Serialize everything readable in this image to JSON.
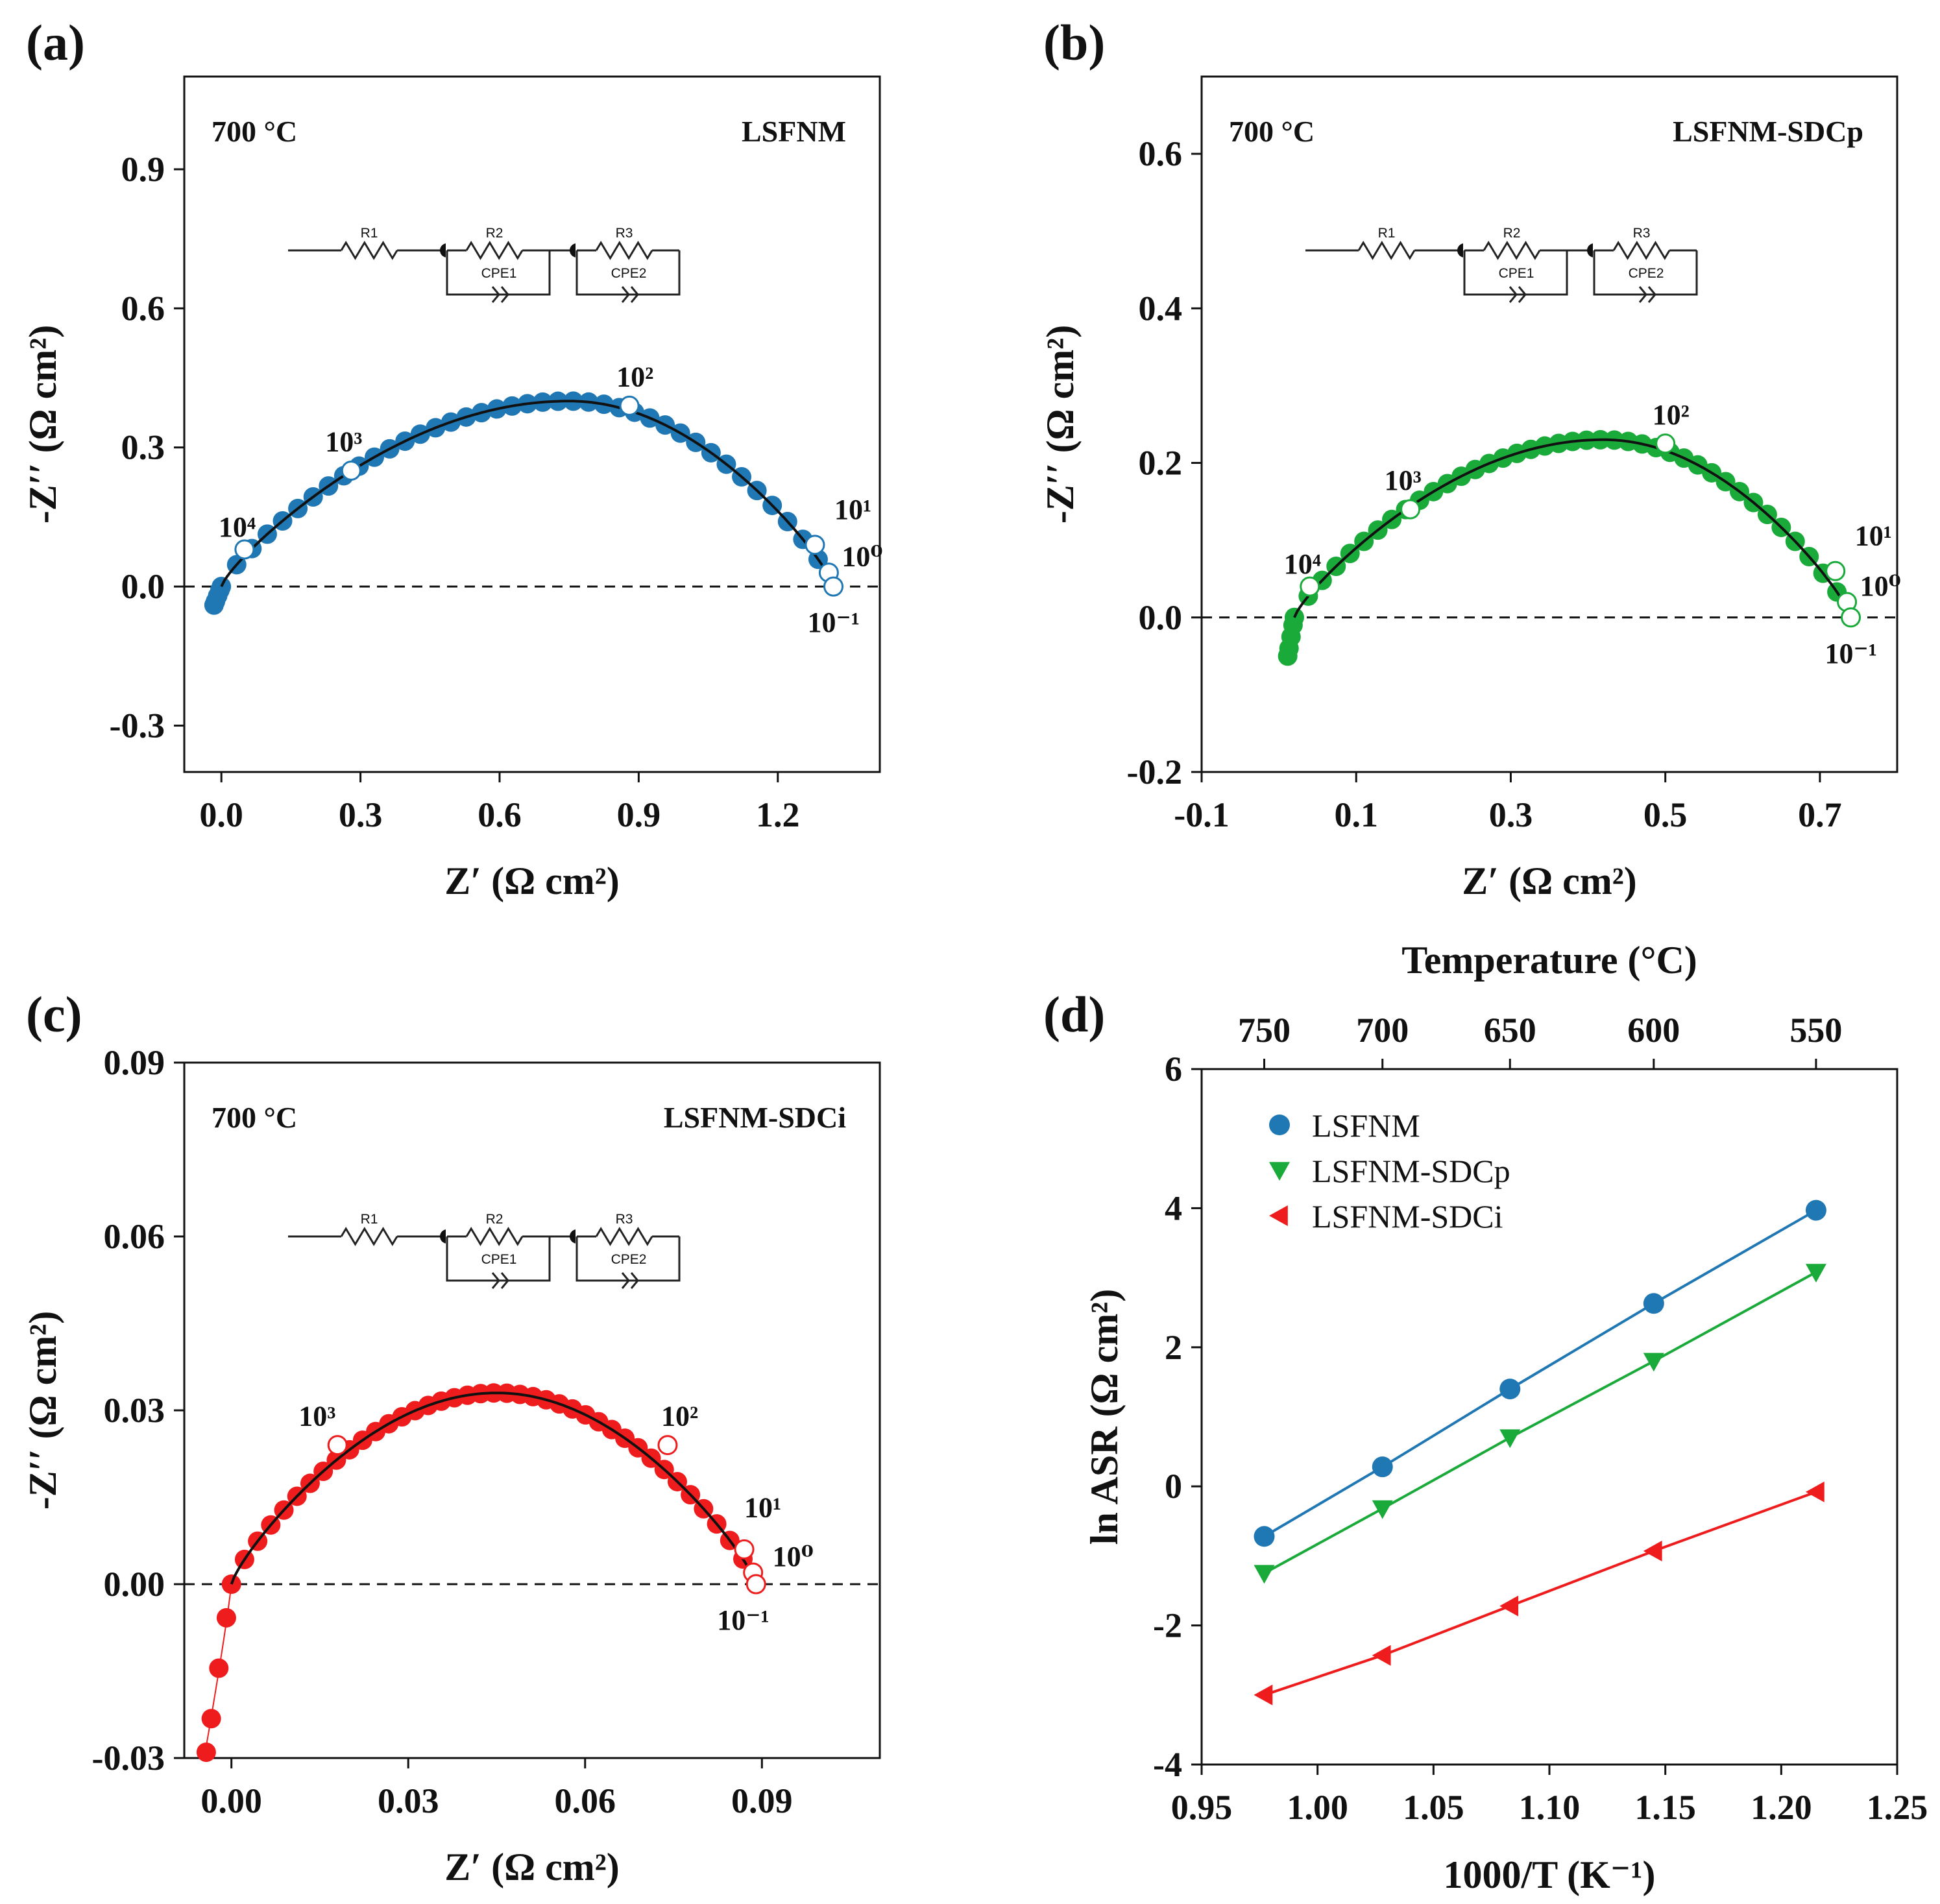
{
  "figure": {
    "panels": [
      {
        "label": "(a)",
        "temp_label": "700 °C",
        "sample": "LSFNM",
        "circuit": [
          "R1",
          "R2",
          "CPE1",
          "R3",
          "CPE2"
        ],
        "xlabel": "Z′ (Ω cm²)",
        "ylabel": "-Z′′ (Ω cm²)",
        "freq_labels": [
          "10⁴",
          "10³",
          "10²",
          "10¹",
          "10⁰",
          "10⁻¹"
        ]
      },
      {
        "label": "(b)",
        "temp_label": "700 °C",
        "sample": "LSFNM-SDCp",
        "circuit": [
          "R1",
          "R2",
          "CPE1",
          "R3",
          "CPE2"
        ],
        "xlabel": "Z′ (Ω cm²)",
        "ylabel": "-Z′′ (Ω cm²)",
        "freq_labels": [
          "10⁴",
          "10³",
          "10²",
          "10¹",
          "10⁰",
          "10⁻¹"
        ]
      },
      {
        "label": "(c)",
        "temp_label": "700 °C",
        "sample": "LSFNM-SDCi",
        "circuit": [
          "R1",
          "R2",
          "CPE1",
          "R3",
          "CPE2"
        ],
        "xlabel": "Z′ (Ω cm²)",
        "ylabel": "-Z′′ (Ω cm²)",
        "freq_labels": [
          "10³",
          "10²",
          "10¹",
          "10⁰",
          "10⁻¹"
        ]
      },
      {
        "label": "(d)",
        "xlabel": "1000/T (K⁻¹)",
        "ylabel": "ln ASR (Ω cm²)",
        "top_label": "Temperature (°C)"
      }
    ]
  },
  "chart_data": [
    {
      "type": "scatter",
      "panel": "(a)",
      "title": "700 °C LSFNM",
      "xlabel": "Z′ (Ω cm²)",
      "ylabel": "-Z′′ (Ω cm²)",
      "xlim": [
        -0.08,
        1.42
      ],
      "ylim": [
        -0.4,
        1.1
      ],
      "xticks": [
        0.0,
        0.3,
        0.6,
        0.9,
        1.2
      ],
      "yticks": [
        -0.3,
        0.0,
        0.3,
        0.6,
        0.9
      ],
      "xtick_labels": [
        "0.0",
        "0.3",
        "0.6",
        "0.9",
        "1.2"
      ],
      "ytick_labels": [
        "-0.3",
        "0.0",
        "0.3",
        "0.6",
        "0.9"
      ],
      "arc": {
        "r0": 0.0,
        "r_end": 1.32,
        "peak": 0.4,
        "peak_x": 0.75,
        "tail_min": -0.04
      },
      "color": "#1f77b4",
      "freq_points": [
        [
          0.05,
          0.08
        ],
        [
          0.28,
          0.25
        ],
        [
          0.88,
          0.39
        ],
        [
          1.28,
          0.09
        ],
        [
          1.31,
          0.03
        ],
        [
          1.32,
          0.0
        ]
      ]
    },
    {
      "type": "scatter",
      "panel": "(b)",
      "title": "700 °C LSFNM-SDCp",
      "xlabel": "Z′ (Ω cm²)",
      "ylabel": "-Z′′ (Ω cm²)",
      "xlim": [
        -0.1,
        0.8
      ],
      "ylim": [
        -0.2,
        0.7
      ],
      "xticks": [
        -0.1,
        0.1,
        0.3,
        0.5,
        0.7
      ],
      "yticks": [
        -0.2,
        0.0,
        0.2,
        0.4,
        0.6
      ],
      "xtick_labels": [
        "-0.1",
        "0.1",
        "0.3",
        "0.5",
        "0.7"
      ],
      "ytick_labels": [
        "-0.2",
        "0.0",
        "0.2",
        "0.4",
        "0.6"
      ],
      "arc": {
        "r0": 0.02,
        "r_end": 0.74,
        "peak": 0.23,
        "peak_x": 0.42,
        "tail_min": -0.05
      },
      "color": "#1aaa3a",
      "freq_points": [
        [
          0.04,
          0.04
        ],
        [
          0.17,
          0.14
        ],
        [
          0.5,
          0.225
        ],
        [
          0.72,
          0.06
        ],
        [
          0.735,
          0.02
        ],
        [
          0.74,
          0.0
        ]
      ]
    },
    {
      "type": "scatter",
      "panel": "(c)",
      "title": "700 °C LSFNM-SDCi",
      "xlabel": "Z′ (Ω cm²)",
      "ylabel": "-Z′′ (Ω cm²)",
      "xlim": [
        -0.008,
        0.11
      ],
      "ylim": [
        -0.03,
        0.09
      ],
      "xticks": [
        0.0,
        0.03,
        0.06,
        0.09
      ],
      "yticks": [
        -0.03,
        0.0,
        0.03,
        0.06,
        0.09
      ],
      "xtick_labels": [
        "0.00",
        "0.03",
        "0.06",
        "0.09"
      ],
      "ytick_labels": [
        "-0.03",
        "0.00",
        "0.03",
        "0.06",
        "0.09"
      ],
      "arc": {
        "r0": 0.0,
        "r_end": 0.089,
        "peak": 0.033,
        "peak_x": 0.045,
        "tail_min": -0.029
      },
      "color": "#ee1c1c",
      "freq_points": [
        [
          0.018,
          0.024
        ],
        [
          0.074,
          0.024
        ],
        [
          0.087,
          0.006
        ],
        [
          0.0885,
          0.002
        ],
        [
          0.089,
          0.0
        ]
      ]
    },
    {
      "type": "line",
      "panel": "(d)",
      "title": "",
      "xlabel": "1000/T (K⁻¹)",
      "ylabel": "ln ASR (Ω cm²)",
      "top_xlabel": "Temperature (°C)",
      "xlim": [
        0.95,
        1.25
      ],
      "ylim": [
        -4,
        6
      ],
      "xticks": [
        0.95,
        1.0,
        1.05,
        1.1,
        1.15,
        1.2,
        1.25
      ],
      "yticks": [
        -4,
        -2,
        0,
        2,
        4,
        6
      ],
      "xtick_labels": [
        "0.95",
        "1.00",
        "1.05",
        "1.10",
        "1.15",
        "1.20",
        "1.25"
      ],
      "ytick_labels": [
        "-4",
        "-2",
        "0",
        "2",
        "4",
        "6"
      ],
      "top_ticks": [
        {
          "label": "750",
          "x": 0.977
        },
        {
          "label": "700",
          "x": 1.028
        },
        {
          "label": "650",
          "x": 1.083
        },
        {
          "label": "600",
          "x": 1.145
        },
        {
          "label": "550",
          "x": 1.215
        }
      ],
      "x": [
        0.977,
        1.028,
        1.083,
        1.145,
        1.215
      ],
      "series": [
        {
          "name": "LSFNM",
          "values": [
            -0.72,
            0.28,
            1.4,
            2.63,
            3.97
          ],
          "color": "#1f77b4",
          "marker": "circle"
        },
        {
          "name": "LSFNM-SDCp",
          "values": [
            -1.25,
            -0.32,
            0.7,
            1.8,
            3.08
          ],
          "color": "#1aaa3a",
          "marker": "triangle-down"
        },
        {
          "name": "LSFNM-SDCi",
          "values": [
            -3.0,
            -2.43,
            -1.72,
            -0.93,
            -0.08
          ],
          "color": "#ee1c1c",
          "marker": "triangle-left"
        }
      ],
      "legend": "top-left"
    }
  ]
}
